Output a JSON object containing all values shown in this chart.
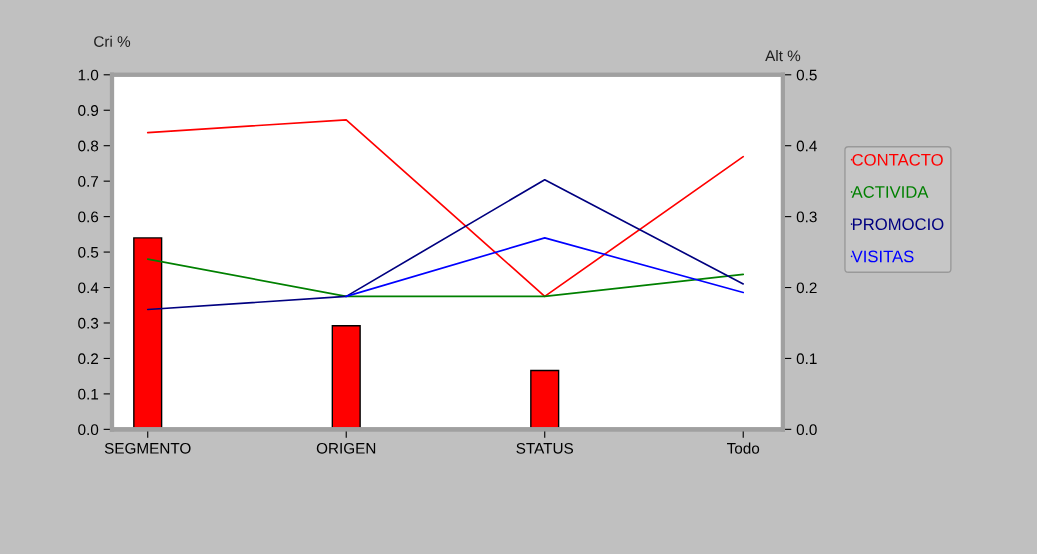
{
  "chart_data": {
    "type": "line",
    "ylabel": "Cri %",
    "y2label": "Alt %",
    "categories": [
      "SEGMENTO",
      "ORIGEN",
      "STATUS",
      "Todo"
    ],
    "series": [
      {
        "type": "bar",
        "axis": "y2",
        "color": "#ff0000",
        "values": [
          0.27,
          0.146,
          0.083,
          null
        ]
      },
      {
        "name": "CONTACTO",
        "color": "#ff0000",
        "values": [
          0.837,
          0.873,
          0.375,
          0.769
        ]
      },
      {
        "name": "ACTIVIDA",
        "color": "#008000",
        "values": [
          0.48,
          0.375,
          0.375,
          0.437
        ]
      },
      {
        "name": "PROMOCIO",
        "color": "#000080",
        "values": [
          0.338,
          0.375,
          0.704,
          0.41
        ]
      },
      {
        "name": "VISITAS",
        "color": "#0000ff",
        "values": [
          null,
          0.375,
          0.54,
          0.386
        ]
      }
    ],
    "ylim": [
      0,
      1.0
    ],
    "yticks": [
      {
        "value": 0,
        "label": "0.0"
      },
      {
        "value": 0.1,
        "label": "0.1"
      },
      {
        "value": 0.2,
        "label": "0.2"
      },
      {
        "value": 0.3,
        "label": "0.3"
      },
      {
        "value": 0.4,
        "label": "0.4"
      },
      {
        "value": 0.5,
        "label": "0.5"
      },
      {
        "value": 0.6,
        "label": "0.6"
      },
      {
        "value": 0.7,
        "label": "0.7"
      },
      {
        "value": 0.8,
        "label": "0.8"
      },
      {
        "value": 0.9,
        "label": "0.9"
      },
      {
        "value": 1.0,
        "label": "1.0"
      }
    ],
    "y2lim": [
      0,
      0.5
    ],
    "y2ticks": [
      {
        "value": 0,
        "label": "0.0"
      },
      {
        "value": 0.1,
        "label": "0.1"
      },
      {
        "value": 0.2,
        "label": "0.2"
      },
      {
        "value": 0.3,
        "label": "0.3"
      },
      {
        "value": 0.4,
        "label": "0.4"
      },
      {
        "value": 0.5,
        "label": "0.5"
      }
    ],
    "grid": false,
    "legend": "right",
    "marker": "none",
    "line_style": "solid"
  }
}
